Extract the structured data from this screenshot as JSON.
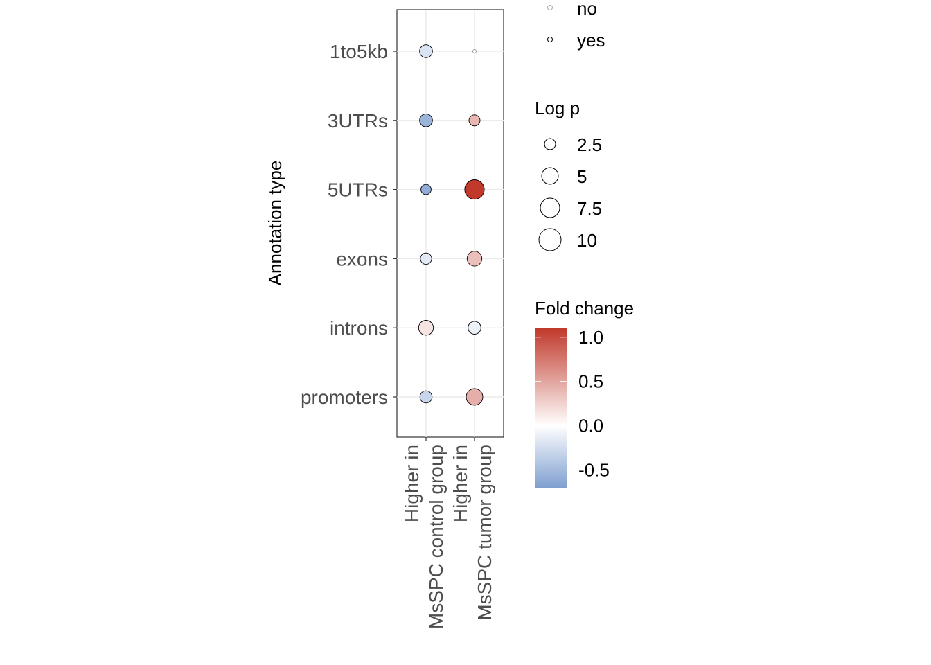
{
  "chart_data": {
    "type": "scatter",
    "ylabel": "Annotation type",
    "xlabel": "",
    "y_categories": [
      "1to5kb",
      "3UTRs",
      "5UTRs",
      "exons",
      "introns",
      "promoters"
    ],
    "x_categories": [
      {
        "line1": "Higher in",
        "line2": "MsSPC control group"
      },
      {
        "line1": "Higher in",
        "line2": "MsSPC tumor group"
      }
    ],
    "points": [
      {
        "annotation": "1to5kb",
        "group": 0,
        "fold_change": -0.2,
        "log_p": 4.5,
        "significant": "yes"
      },
      {
        "annotation": "1to5kb",
        "group": 1,
        "fold_change": 0.0,
        "log_p": 0.3,
        "significant": "no"
      },
      {
        "annotation": "3UTRs",
        "group": 0,
        "fold_change": -0.55,
        "log_p": 4.5,
        "significant": "yes"
      },
      {
        "annotation": "3UTRs",
        "group": 1,
        "fold_change": 0.4,
        "log_p": 3.3,
        "significant": "yes"
      },
      {
        "annotation": "5UTRs",
        "group": 0,
        "fold_change": -0.6,
        "log_p": 2.8,
        "significant": "yes"
      },
      {
        "annotation": "5UTRs",
        "group": 1,
        "fold_change": 1.15,
        "log_p": 10.5,
        "significant": "yes"
      },
      {
        "annotation": "exons",
        "group": 0,
        "fold_change": -0.15,
        "log_p": 3.5,
        "significant": "yes"
      },
      {
        "annotation": "exons",
        "group": 1,
        "fold_change": 0.35,
        "log_p": 6.0,
        "significant": "yes"
      },
      {
        "annotation": "introns",
        "group": 0,
        "fold_change": 0.15,
        "log_p": 6.0,
        "significant": "yes"
      },
      {
        "annotation": "introns",
        "group": 1,
        "fold_change": -0.1,
        "log_p": 4.5,
        "significant": "yes"
      },
      {
        "annotation": "promoters",
        "group": 0,
        "fold_change": -0.3,
        "log_p": 4.0,
        "significant": "yes"
      },
      {
        "annotation": "promoters",
        "group": 1,
        "fold_change": 0.45,
        "log_p": 7.5,
        "significant": "yes"
      }
    ],
    "legend_significance": {
      "entries": [
        "no",
        "yes"
      ]
    },
    "legend_size": {
      "title": "Log p",
      "entries": [
        {
          "label": "2.5",
          "value": 2.5
        },
        {
          "label": "5",
          "value": 5
        },
        {
          "label": "7.5",
          "value": 7.5
        },
        {
          "label": "10",
          "value": 10
        }
      ]
    },
    "legend_color": {
      "title": "Fold change",
      "range": [
        -0.7,
        1.1
      ],
      "ticks": [
        {
          "label": "1.0",
          "value": 1.0
        },
        {
          "label": "0.5",
          "value": 0.5
        },
        {
          "label": "0.0",
          "value": 0.0
        },
        {
          "label": "-0.5",
          "value": -0.5
        }
      ],
      "low_color": "#7f9fd0",
      "mid_color": "#ffffff",
      "high_color": "#c0392b"
    },
    "grid": true,
    "legend_position": "right"
  }
}
